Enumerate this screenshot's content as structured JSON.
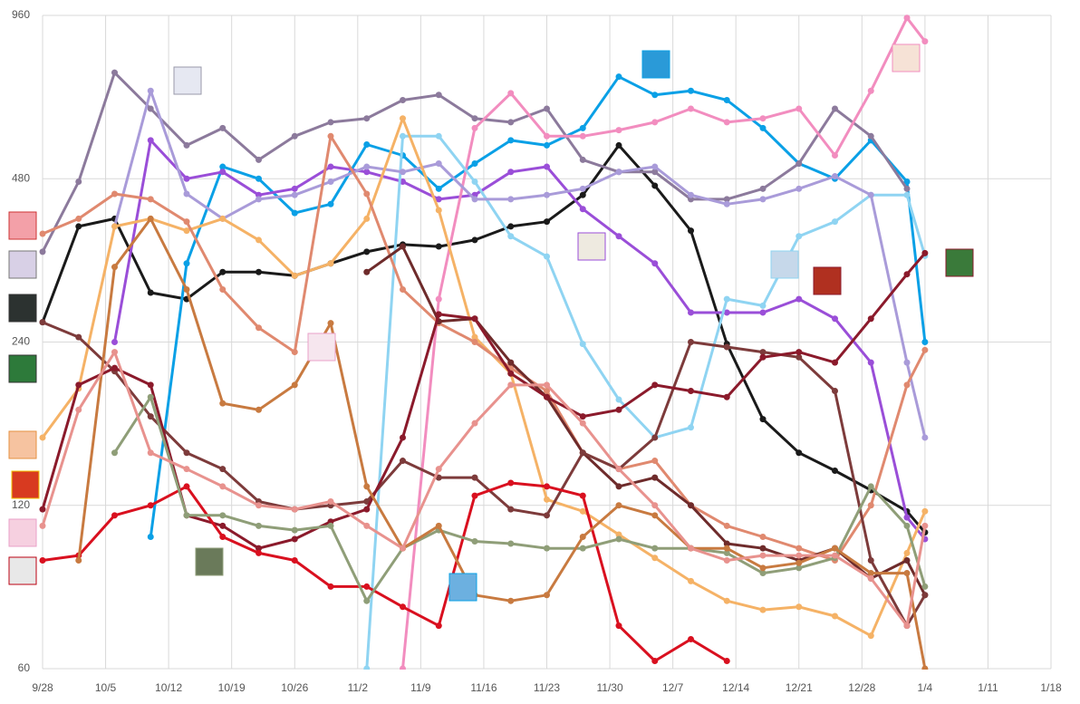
{
  "chart_data": {
    "type": "line",
    "log_y": true,
    "grid": true,
    "x": [
      0,
      4,
      8,
      12,
      16,
      20,
      24,
      28,
      32,
      36,
      40,
      44,
      48,
      52,
      56,
      60,
      64,
      68,
      72,
      76,
      80,
      84,
      88,
      92,
      96,
      98
    ],
    "xlim": [
      0,
      112
    ],
    "xticks": [
      {
        "value": 0,
        "label": "9/28"
      },
      {
        "value": 7,
        "label": "10/5"
      },
      {
        "value": 14,
        "label": "10/12"
      },
      {
        "value": 21,
        "label": "10/19"
      },
      {
        "value": 28,
        "label": "10/26"
      },
      {
        "value": 35,
        "label": "11/2"
      },
      {
        "value": 42,
        "label": "11/9"
      },
      {
        "value": 49,
        "label": "11/16"
      },
      {
        "value": 56,
        "label": "11/23"
      },
      {
        "value": 63,
        "label": "11/30"
      },
      {
        "value": 70,
        "label": "12/7"
      },
      {
        "value": 77,
        "label": "12/14"
      },
      {
        "value": 84,
        "label": "12/21"
      },
      {
        "value": 91,
        "label": "12/28"
      },
      {
        "value": 98,
        "label": "1/4"
      },
      {
        "value": 105,
        "label": "1/11"
      },
      {
        "value": 112,
        "label": "1/18"
      }
    ],
    "ylim": [
      60,
      960
    ],
    "yticks": [
      60,
      120,
      240,
      480,
      960
    ],
    "series": [
      {
        "color": "#1a1a1a",
        "values": [
          261,
          392,
          405,
          296,
          288,
          323,
          323,
          318,
          335,
          352,
          363,
          360,
          370,
          392,
          400,
          448,
          553,
          466,
          385,
          238,
          173,
          150,
          139,
          128,
          117,
          107
        ]
      },
      {
        "color": "#0aa0e6",
        "values": [
          null,
          null,
          null,
          105,
          335,
          505,
          480,
          415,
          431,
          555,
          530,
          460,
          512,
          565,
          553,
          595,
          740,
          685,
          697,
          670,
          595,
          512,
          480,
          565,
          474,
          240
        ]
      },
      {
        "color": "#8c7a9c",
        "values": [
          352,
          474,
          753,
          646,
          553,
          595,
          520,
          575,
          610,
          620,
          670,
          685,
          620,
          610,
          646,
          520,
          494,
          494,
          440,
          440,
          460,
          512,
          646,
          575,
          460,
          null
        ]
      },
      {
        "color": "#9a4ed8",
        "values": [
          null,
          null,
          240,
          565,
          480,
          494,
          448,
          460,
          505,
          494,
          474,
          440,
          448,
          494,
          505,
          422,
          376,
          335,
          272,
          272,
          272,
          288,
          265,
          220,
          114,
          104
        ]
      },
      {
        "color": "#f28dbf",
        "values": [
          null,
          null,
          null,
          null,
          null,
          null,
          null,
          null,
          null,
          null,
          60,
          288,
          595,
          690,
          575,
          575,
          590,
          610,
          646,
          610,
          620,
          646,
          530,
          697,
          950,
          860
        ]
      },
      {
        "color": "#8fd4f2",
        "values": [
          null,
          null,
          null,
          null,
          null,
          null,
          null,
          null,
          null,
          60,
          575,
          575,
          474,
          376,
          345,
          238,
          188,
          160,
          167,
          288,
          280,
          376,
          400,
          448,
          448,
          346
        ]
      },
      {
        "color": "#a99bd9",
        "values": [
          null,
          null,
          392,
          697,
          450,
          405,
          440,
          448,
          474,
          505,
          494,
          512,
          440,
          440,
          448,
          460,
          494,
          505,
          448,
          431,
          440,
          460,
          485,
          448,
          220,
          160
        ]
      },
      {
        "color": "#f5b266",
        "values": [
          160,
          197,
          392,
          405,
          385,
          405,
          370,
          318,
          335,
          405,
          620,
          420,
          245,
          210,
          123,
          117,
          106,
          96,
          87,
          80,
          77,
          78,
          75,
          69,
          98,
          117
        ]
      },
      {
        "color": "#e0896f",
        "values": [
          380,
          405,
          450,
          440,
          400,
          300,
          255,
          230,
          575,
          450,
          300,
          260,
          240,
          215,
          195,
          150,
          140,
          145,
          120,
          110,
          105,
          100,
          95,
          120,
          200,
          232
        ]
      },
      {
        "color": "#6e2b2b",
        "values": [
          null,
          null,
          null,
          null,
          null,
          null,
          null,
          null,
          null,
          323,
          360,
          262,
          265,
          220,
          190,
          150,
          130,
          135,
          120,
          102,
          100,
          95,
          100,
          88,
          95,
          82
        ]
      },
      {
        "color": "#7d3b3b",
        "values": [
          261,
          245,
          212,
          175,
          150,
          140,
          122,
          118,
          120,
          122,
          145,
          135,
          135,
          118,
          115,
          150,
          140,
          160,
          240,
          235,
          230,
          225,
          195,
          95,
          72,
          82
        ]
      },
      {
        "color": "#8b1a2b",
        "values": [
          118,
          200,
          215,
          200,
          115,
          110,
          100,
          104,
          112,
          118,
          160,
          270,
          265,
          210,
          190,
          175,
          180,
          200,
          195,
          190,
          225,
          230,
          220,
          265,
          320,
          350
        ]
      },
      {
        "color": "#d9101f",
        "values": [
          95,
          97,
          115,
          120,
          130,
          105,
          98,
          95,
          85,
          85,
          78,
          72,
          125,
          132,
          130,
          125,
          72,
          62,
          68,
          62,
          null,
          null,
          null,
          null,
          null,
          null
        ]
      },
      {
        "color": "#8f9e78",
        "values": [
          null,
          null,
          150,
          190,
          115,
          115,
          110,
          108,
          110,
          80,
          100,
          108,
          103,
          102,
          100,
          100,
          104,
          100,
          100,
          98,
          90,
          92,
          96,
          130,
          110,
          85
        ]
      },
      {
        "color": "#c87a40",
        "values": [
          null,
          95,
          330,
          405,
          300,
          185,
          180,
          200,
          260,
          130,
          100,
          110,
          82,
          80,
          82,
          105,
          120,
          115,
          100,
          100,
          92,
          94,
          100,
          90,
          90,
          60
        ]
      },
      {
        "color": "#e8928e",
        "values": [
          110,
          180,
          230,
          150,
          140,
          130,
          120,
          118,
          122,
          110,
          100,
          140,
          170,
          200,
          200,
          170,
          140,
          120,
          100,
          95,
          97,
          97,
          97,
          88,
          72,
          110
        ]
      }
    ]
  }
}
